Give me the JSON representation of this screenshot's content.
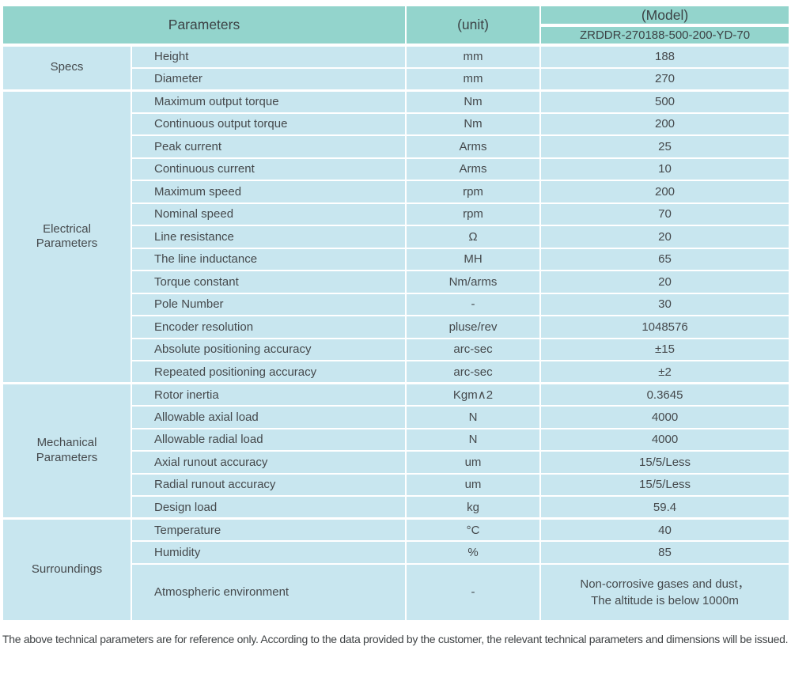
{
  "colors": {
    "header_bg": "#93d4cc",
    "body_bg": "#c8e6ef",
    "separator": "#ffffff",
    "text": "#45494c"
  },
  "table": {
    "header": {
      "parameters_label": "Parameters",
      "unit_label": "(unit)",
      "model_label": "(Model)",
      "model_value": "ZRDDR-270188-500-200-YD-70"
    },
    "sections": [
      {
        "group": "Specs",
        "rows": [
          {
            "param": "Height",
            "unit": "mm",
            "value": "188"
          },
          {
            "param": "Diameter",
            "unit": "mm",
            "value": "270"
          }
        ]
      },
      {
        "group": "Electrical\nParameters",
        "rows": [
          {
            "param": "Maximum output torque",
            "unit": "Nm",
            "value": "500"
          },
          {
            "param": "Continuous output torque",
            "unit": "Nm",
            "value": "200"
          },
          {
            "param": "Peak current",
            "unit": "Arms",
            "value": "25"
          },
          {
            "param": "Continuous current",
            "unit": "Arms",
            "value": "10"
          },
          {
            "param": "Maximum speed",
            "unit": "rpm",
            "value": "200"
          },
          {
            "param": "Nominal speed",
            "unit": "rpm",
            "value": "70"
          },
          {
            "param": "Line resistance",
            "unit": "Ω",
            "value": "20"
          },
          {
            "param": "The line inductance",
            "unit": "MH",
            "value": "65"
          },
          {
            "param": "Torque constant",
            "unit": "Nm/arms",
            "value": "20"
          },
          {
            "param": "Pole Number",
            "unit": "-",
            "value": "30"
          },
          {
            "param": "Encoder resolution",
            "unit": "pluse/rev",
            "value": "1048576"
          },
          {
            "param": "Absolute positioning accuracy",
            "unit": "arc-sec",
            "value": "±15"
          },
          {
            "param": "Repeated positioning accuracy",
            "unit": "arc-sec",
            "value": "±2"
          }
        ]
      },
      {
        "group": "Mechanical\nParameters",
        "rows": [
          {
            "param": "Rotor inertia",
            "unit": "Kgm∧2",
            "value": "0.3645"
          },
          {
            "param": "Allowable axial load",
            "unit": "N",
            "value": "4000"
          },
          {
            "param": "Allowable radial load",
            "unit": "N",
            "value": "4000"
          },
          {
            "param": "Axial runout accuracy",
            "unit": "um",
            "value": "15/5/Less"
          },
          {
            "param": "Radial runout accuracy",
            "unit": "um",
            "value": "15/5/Less"
          },
          {
            "param": "Design load",
            "unit": "kg",
            "value": "59.4"
          }
        ]
      },
      {
        "group": "Surroundings",
        "rows": [
          {
            "param": "Temperature",
            "unit": "°C",
            "value": "40"
          },
          {
            "param": "Humidity",
            "unit": "%",
            "value": "85"
          },
          {
            "param": "Atmospheric environment",
            "unit": "-",
            "value": "Non-corrosive gases and dust，\nThe altitude is below 1000m"
          }
        ]
      }
    ]
  },
  "footer_note": "The above technical parameters are for reference only. According to the data provided by the customer, the relevant technical parameters and dimensions will be issued."
}
